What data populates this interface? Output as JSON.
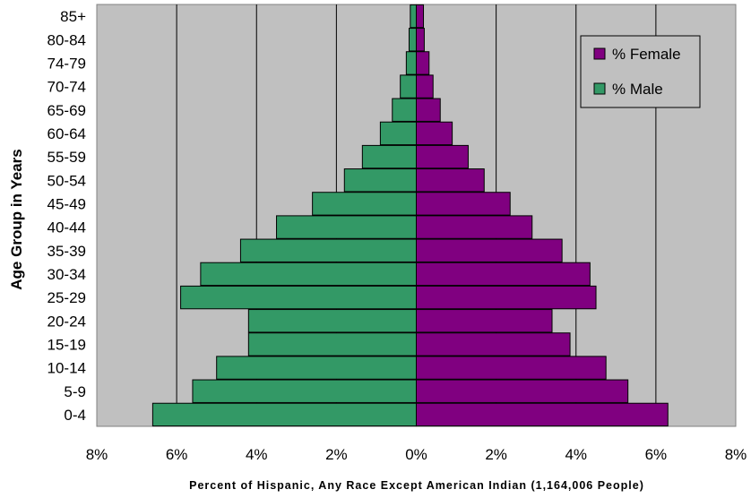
{
  "chart_data": {
    "type": "bar",
    "orientation": "horizontal",
    "layout": "population-pyramid",
    "categories": [
      "0-4",
      "5-9",
      "10-14",
      "15-19",
      "20-24",
      "25-29",
      "30-34",
      "35-39",
      "40-44",
      "45-49",
      "50-54",
      "55-59",
      "60-64",
      "65-69",
      "70-74",
      "74-79",
      "80-84",
      "85+"
    ],
    "series": [
      {
        "name": "% Male",
        "side": "left",
        "color": "#339966",
        "values": [
          6.6,
          5.6,
          5.0,
          4.2,
          4.2,
          5.9,
          5.4,
          4.4,
          3.5,
          2.6,
          1.8,
          1.35,
          0.9,
          0.6,
          0.4,
          0.25,
          0.18,
          0.15
        ]
      },
      {
        "name": "% Female",
        "side": "right",
        "color": "#800080",
        "values": [
          6.3,
          5.3,
          4.75,
          3.85,
          3.4,
          4.5,
          4.35,
          3.65,
          2.9,
          2.35,
          1.7,
          1.3,
          0.9,
          0.6,
          0.42,
          0.32,
          0.2,
          0.18
        ]
      }
    ],
    "xticks": [
      "8%",
      "6%",
      "4%",
      "2%",
      "0%",
      "2%",
      "4%",
      "6%",
      "8%"
    ],
    "xlim": [
      -8,
      8
    ],
    "ylabel": "Age Group in Years",
    "xlabel": "Percent of Hispanic, Any Race Except American Indian (1,164,006 People)",
    "legend": {
      "position": "top-right",
      "entries": [
        "% Female",
        "% Male"
      ]
    },
    "grid": true,
    "plot_background": "#c0c0c0"
  }
}
